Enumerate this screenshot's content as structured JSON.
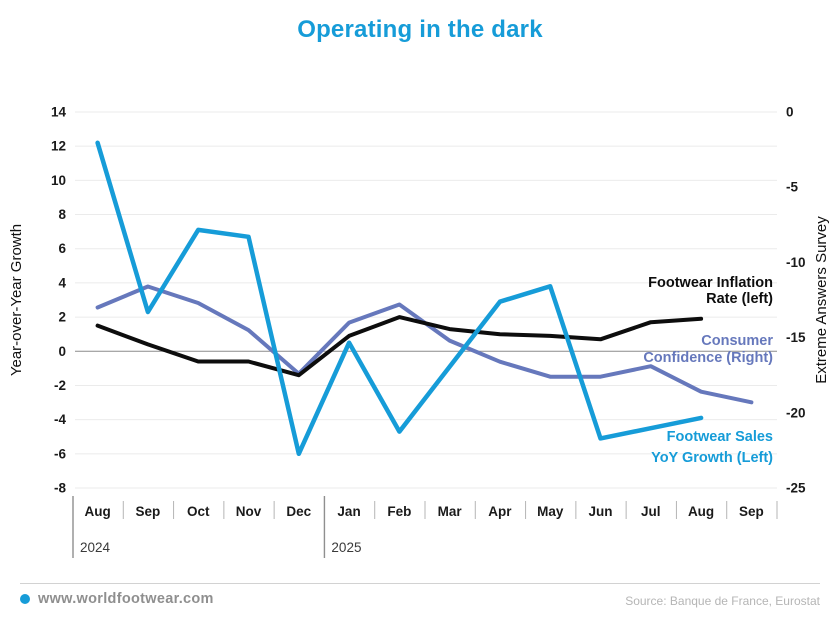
{
  "title": "Operating in the dark",
  "chart_data": {
    "type": "line",
    "x_categories": [
      "Aug",
      "Sep",
      "Oct",
      "Nov",
      "Dec",
      "Jan",
      "Feb",
      "Mar",
      "Apr",
      "May",
      "Jun",
      "Jul",
      "Aug",
      "Sep"
    ],
    "year_labels": [
      {
        "label": "2024",
        "month_index": 0
      },
      {
        "label": "2025",
        "month_index": 5
      }
    ],
    "left_axis": {
      "label": "Year-over-Year Growth",
      "min": -8,
      "max": 14,
      "tick_step": 2
    },
    "right_axis": {
      "label": "Extreme Answers Survey",
      "min": -25,
      "max": 0,
      "tick_step": 5
    },
    "grid": true,
    "legend_position": "inline-annotations",
    "series": [
      {
        "name": "Consumer Confidence (Right)",
        "axis": "right",
        "color": "#6678bc",
        "values": [
          -13.0,
          -11.6,
          -12.7,
          -14.5,
          -17.4,
          -14.0,
          -12.8,
          -15.2,
          -16.6,
          -17.6,
          -17.6,
          -16.9,
          -18.6,
          -19.3
        ],
        "annotation_lines": [
          "Consumer",
          "Confidence (Right)"
        ]
      },
      {
        "name": "Footwear Inflation Rate (left)",
        "axis": "left",
        "color": "#0d0d0d",
        "values": [
          1.5,
          0.4,
          -0.6,
          -0.6,
          -1.4,
          0.9,
          2.0,
          1.3,
          1.0,
          0.9,
          0.7,
          1.7,
          1.9,
          null
        ],
        "annotation_lines": [
          "Footwear Inflation",
          "Rate (left)"
        ]
      },
      {
        "name": "Footwear Sales YoY Growth (Left)",
        "axis": "left",
        "color": "#169cd8",
        "values": [
          12.2,
          2.3,
          7.1,
          6.7,
          -6.0,
          0.5,
          -4.7,
          -0.9,
          2.9,
          3.8,
          -5.1,
          -4.5,
          -3.9,
          null
        ],
        "annotation_lines": [
          "Footwear Sales",
          "YoY Growth (Left)"
        ]
      }
    ]
  },
  "footer": {
    "site": "www.worldfootwear.com",
    "source": "Source: Banque de France, Eurostat"
  },
  "colors": {
    "title": "#169cd8",
    "inflation_line": "#0d0d0d",
    "confidence_line": "#6678bc",
    "sales_line": "#169cd8",
    "grid": "#ebebeb",
    "zero_line": "#8c8c8c",
    "footer_dot": "#169cd8"
  }
}
